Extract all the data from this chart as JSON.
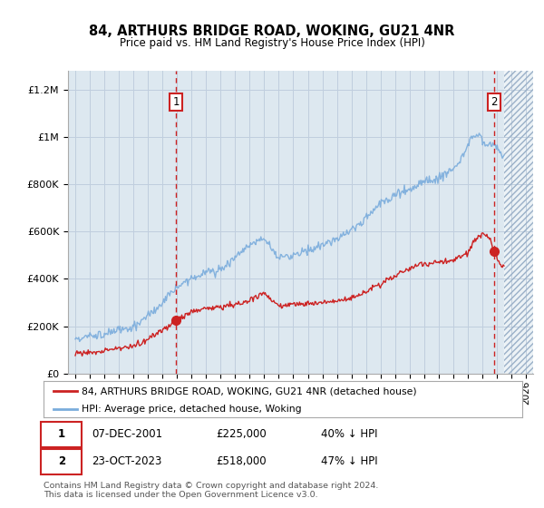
{
  "title": "84, ARTHURS BRIDGE ROAD, WOKING, GU21 4NR",
  "subtitle": "Price paid vs. HM Land Registry's House Price Index (HPI)",
  "sale1_date": 2001.92,
  "sale1_price": 225000,
  "sale1_label": "1",
  "sale2_date": 2023.81,
  "sale2_price": 518000,
  "sale2_label": "2",
  "legend_entry1": "84, ARTHURS BRIDGE ROAD, WOKING, GU21 4NR (detached house)",
  "legend_entry2": "HPI: Average price, detached house, Woking",
  "table_row1": [
    "1",
    "07-DEC-2001",
    "£225,000",
    "40% ↓ HPI"
  ],
  "table_row2": [
    "2",
    "23-OCT-2023",
    "£518,000",
    "47% ↓ HPI"
  ],
  "footnote1": "Contains HM Land Registry data © Crown copyright and database right 2024.",
  "footnote2": "This data is licensed under the Open Government Licence v3.0.",
  "hpi_color": "#7aacdc",
  "price_color": "#cc2222",
  "bg_color": "#dde8f0",
  "grid_color": "#c0cede",
  "xmin": 1994.5,
  "xmax": 2026.5,
  "ymin": 0,
  "ymax": 1280000,
  "future_start": 2024.5
}
